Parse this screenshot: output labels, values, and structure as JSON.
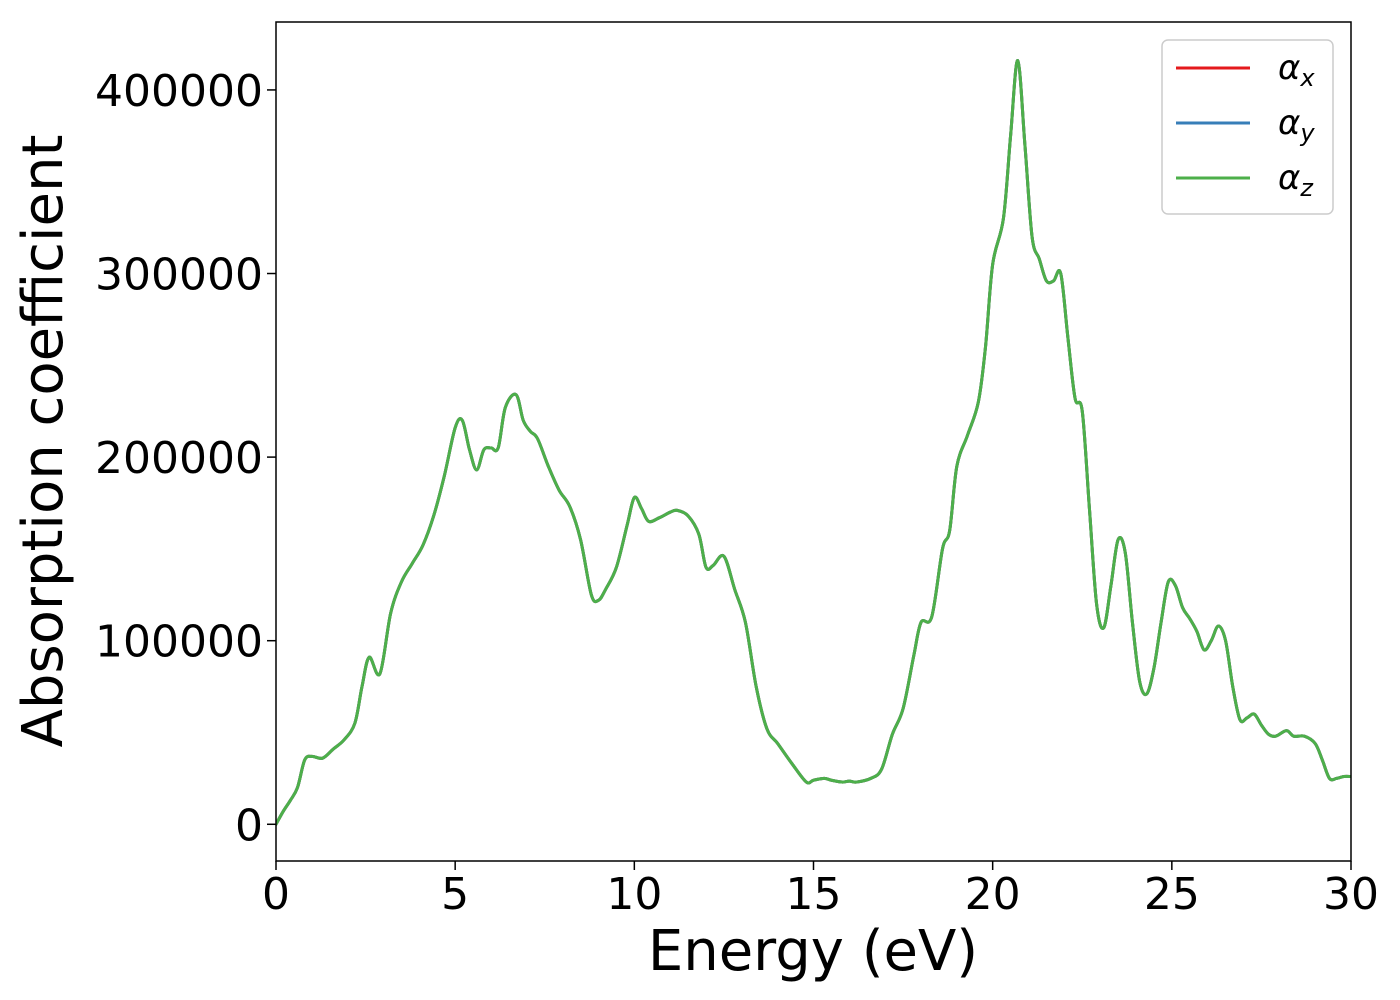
{
  "chart_data": {
    "type": "line",
    "title": "",
    "xlabel": "Energy (eV)",
    "ylabel": "Absorption coefficient",
    "xlim": [
      0,
      30
    ],
    "ylim": [
      -20000,
      437000
    ],
    "xticks": [
      0,
      5,
      10,
      15,
      20,
      25,
      30
    ],
    "xtick_labels": [
      "0",
      "5",
      "10",
      "15",
      "20",
      "25",
      "30"
    ],
    "yticks": [
      0,
      100000,
      200000,
      300000,
      400000
    ],
    "ytick_labels": [
      "0",
      "100000",
      "200000",
      "300000",
      "400000"
    ],
    "grid": false,
    "legend_position": "top-right",
    "x": [
      0,
      0.2,
      0.4,
      0.6,
      0.8,
      1.0,
      1.3,
      1.6,
      1.9,
      2.2,
      2.4,
      2.6,
      2.9,
      3.2,
      3.5,
      3.8,
      4.1,
      4.4,
      4.7,
      5.0,
      5.2,
      5.4,
      5.6,
      5.8,
      6.0,
      6.2,
      6.4,
      6.7,
      6.9,
      7.1,
      7.3,
      7.6,
      7.9,
      8.2,
      8.5,
      8.8,
      9.0,
      9.2,
      9.5,
      9.8,
      10.0,
      10.2,
      10.4,
      10.7,
      11.0,
      11.2,
      11.5,
      11.8,
      12.0,
      12.2,
      12.5,
      12.8,
      13.1,
      13.4,
      13.7,
      14.0,
      14.4,
      14.8,
      15.0,
      15.3,
      15.5,
      15.8,
      16.0,
      16.2,
      16.6,
      16.9,
      17.2,
      17.5,
      17.8,
      18.0,
      18.3,
      18.6,
      18.8,
      19.0,
      19.3,
      19.6,
      19.8,
      20.0,
      20.3,
      20.5,
      20.7,
      20.9,
      21.1,
      21.3,
      21.5,
      21.7,
      21.9,
      22.1,
      22.3,
      22.5,
      22.7,
      22.9,
      23.1,
      23.3,
      23.5,
      23.7,
      23.9,
      24.1,
      24.3,
      24.5,
      24.7,
      24.9,
      25.1,
      25.3,
      25.5,
      25.7,
      25.9,
      26.1,
      26.3,
      26.5,
      26.7,
      26.9,
      27.1,
      27.3,
      27.5,
      27.7,
      27.9,
      28.2,
      28.4,
      28.7,
      29.0,
      29.2,
      29.4,
      29.6,
      29.8,
      30.0
    ],
    "y": [
      0,
      7000,
      13000,
      20000,
      35000,
      37000,
      36000,
      41000,
      46000,
      55000,
      75000,
      91000,
      82000,
      115000,
      132000,
      142000,
      152000,
      168000,
      190000,
      216000,
      220000,
      204000,
      193000,
      204000,
      205000,
      205000,
      227000,
      234000,
      220000,
      214000,
      210000,
      195000,
      182000,
      173000,
      155000,
      125000,
      122000,
      128000,
      140000,
      163000,
      178000,
      172000,
      165000,
      167000,
      170000,
      171000,
      168000,
      158000,
      140000,
      141000,
      146000,
      128000,
      110000,
      75000,
      52000,
      44000,
      33000,
      23000,
      24000,
      25000,
      24000,
      23000,
      23500,
      23000,
      25000,
      30000,
      49000,
      63000,
      92000,
      110000,
      113000,
      150000,
      160000,
      195000,
      212000,
      230000,
      260000,
      305000,
      330000,
      375000,
      416000,
      370000,
      320000,
      308000,
      296000,
      296000,
      300000,
      265000,
      232000,
      225000,
      172000,
      120000,
      107000,
      130000,
      155000,
      148000,
      110000,
      78000,
      71000,
      85000,
      110000,
      132000,
      130000,
      118000,
      112000,
      105000,
      95000,
      100000,
      108000,
      100000,
      75000,
      57000,
      58000,
      60000,
      54000,
      49000,
      48000,
      51000,
      48000,
      48000,
      44000,
      35000,
      25000,
      25000,
      26000,
      26000
    ],
    "series": [
      {
        "name": "αx",
        "symbol": "α",
        "subscript": "x",
        "color": "#e41a1c"
      },
      {
        "name": "αy",
        "symbol": "α",
        "subscript": "y",
        "color": "#377eb8"
      },
      {
        "name": "αz",
        "symbol": "α",
        "subscript": "z",
        "color": "#4daf4a"
      }
    ]
  }
}
